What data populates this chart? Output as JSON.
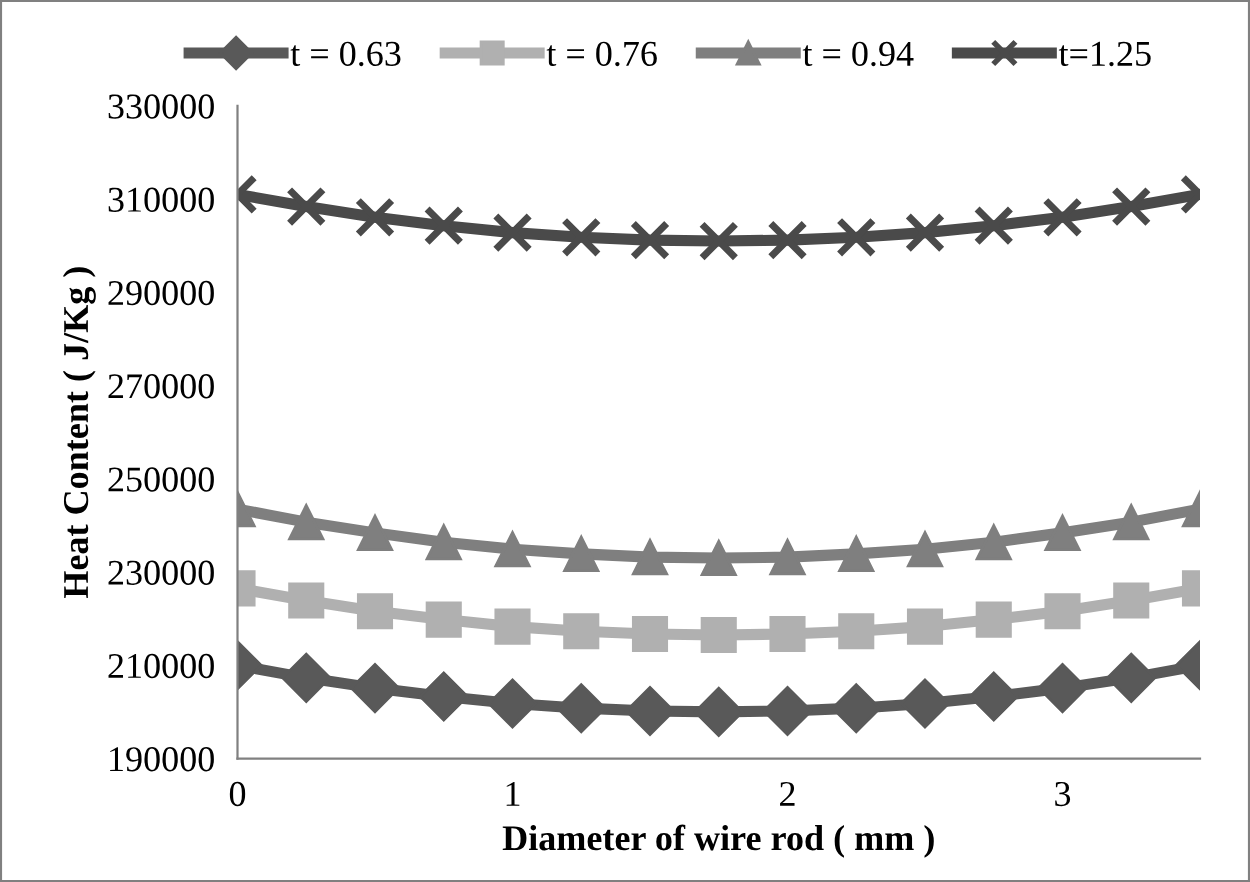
{
  "chart_data": {
    "type": "line",
    "xlabel": "Diameter of wire rod ( mm )",
    "ylabel": "Heat Content ( J/Kg )",
    "x": [
      0,
      0.25,
      0.5,
      0.75,
      1,
      1.25,
      1.5,
      1.75,
      2,
      2.25,
      2.5,
      2.75,
      3,
      3.25,
      3.5
    ],
    "series": [
      {
        "name": "t = 0.63",
        "color": "#595959",
        "marker": "diamond",
        "values": [
          210000,
          207300,
          205100,
          203300,
          201800,
          200800,
          200200,
          200000,
          200200,
          200800,
          201800,
          203300,
          205100,
          207300,
          210000
        ]
      },
      {
        "name": "t = 0.76",
        "color": "#b0b0b0",
        "marker": "square",
        "values": [
          226500,
          223900,
          221600,
          219800,
          218300,
          217300,
          216700,
          216500,
          216700,
          217300,
          218300,
          219800,
          221600,
          223900,
          226500
        ]
      },
      {
        "name": "t = 0.94",
        "color": "#7f7f7f",
        "marker": "triangle",
        "values": [
          243500,
          240700,
          238400,
          236400,
          234900,
          233900,
          233200,
          233000,
          233200,
          233900,
          234900,
          236400,
          238400,
          240700,
          243500
        ]
      },
      {
        "name": "t=1.25",
        "color": "#4a4a4a",
        "marker": "cross",
        "values": [
          311000,
          308400,
          306100,
          304300,
          302800,
          301800,
          301200,
          301000,
          301200,
          301800,
          302800,
          304300,
          306100,
          308400,
          311000
        ]
      }
    ],
    "xlim": [
      0,
      3.5
    ],
    "xticks": [
      0,
      1,
      2,
      3
    ],
    "ylim": [
      190000,
      330000
    ],
    "yticks": [
      190000,
      210000,
      230000,
      250000,
      270000,
      290000,
      310000,
      330000
    ],
    "grid": false,
    "legend": "top",
    "line_style": "solid"
  }
}
